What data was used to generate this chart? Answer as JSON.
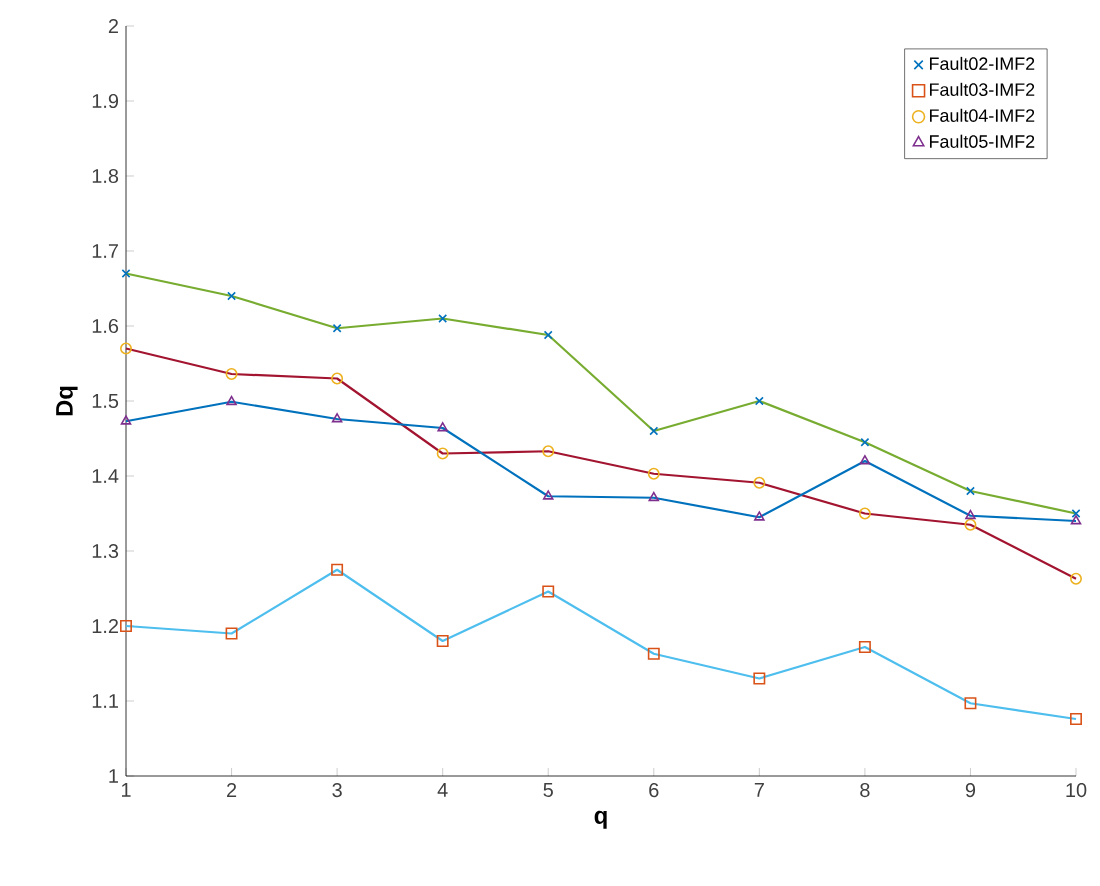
{
  "chart_data": {
    "type": "line",
    "xlabel": "q",
    "ylabel": "Dq",
    "x": [
      1,
      2,
      3,
      4,
      5,
      6,
      7,
      8,
      9,
      10
    ],
    "xlim": [
      1,
      10
    ],
    "xticks": [
      1,
      2,
      3,
      4,
      5,
      6,
      7,
      8,
      9,
      10
    ],
    "ylim": [
      1,
      2
    ],
    "yticks": [
      1,
      1.1,
      1.2,
      1.3,
      1.4,
      1.5,
      1.6,
      1.7,
      1.8,
      1.9,
      2
    ],
    "legend": "top right",
    "grid": false,
    "line_style": "solid",
    "series": [
      {
        "name": "Fault02-IMF2",
        "color": "#77ac30",
        "marker": "cross",
        "colors": [
          "#0072bd",
          "#0072bd",
          "#0072bd",
          "#0072bd",
          "#0072bd",
          "#0072bd",
          "#0072bd",
          "#0072bd",
          "#0072bd",
          "#0072bd"
        ],
        "values": [
          1.67,
          1.64,
          1.597,
          1.61,
          1.588,
          1.46,
          1.5,
          1.445,
          1.38,
          1.35
        ]
      },
      {
        "name": "Fault03-IMF2",
        "color": "#4dbeee",
        "marker": "square",
        "colors": [
          "#d95319",
          "#d95319",
          "#d95319",
          "#d95319",
          "#d95319",
          "#d95319",
          "#d95319",
          "#d95319",
          "#d95319",
          "#d95319"
        ],
        "values": [
          1.2,
          1.19,
          1.275,
          1.18,
          1.246,
          1.163,
          1.13,
          1.172,
          1.097,
          1.076
        ]
      },
      {
        "name": "Fault04-IMF2",
        "color": "#a2142f",
        "marker": "circle",
        "colors": [
          "#edb120",
          "#edb120",
          "#edb120",
          "#edb120",
          "#edb120",
          "#edb120",
          "#edb120",
          "#edb120",
          "#edb120",
          "#edb120"
        ],
        "values": [
          1.57,
          1.536,
          1.53,
          1.43,
          1.433,
          1.403,
          1.391,
          1.35,
          1.335,
          1.263
        ]
      },
      {
        "name": "Fault05-IMF2",
        "color": "#0072bd",
        "marker": "triangle",
        "colors": [
          "#7e2f8e",
          "#7e2f8e",
          "#7e2f8e",
          "#7e2f8e",
          "#7e2f8e",
          "#7e2f8e",
          "#7e2f8e",
          "#7e2f8e",
          "#7e2f8e",
          "#7e2f8e"
        ],
        "values": [
          1.473,
          1.499,
          1.476,
          1.464,
          1.373,
          1.371,
          1.345,
          1.42,
          1.347,
          1.34
        ]
      }
    ]
  }
}
